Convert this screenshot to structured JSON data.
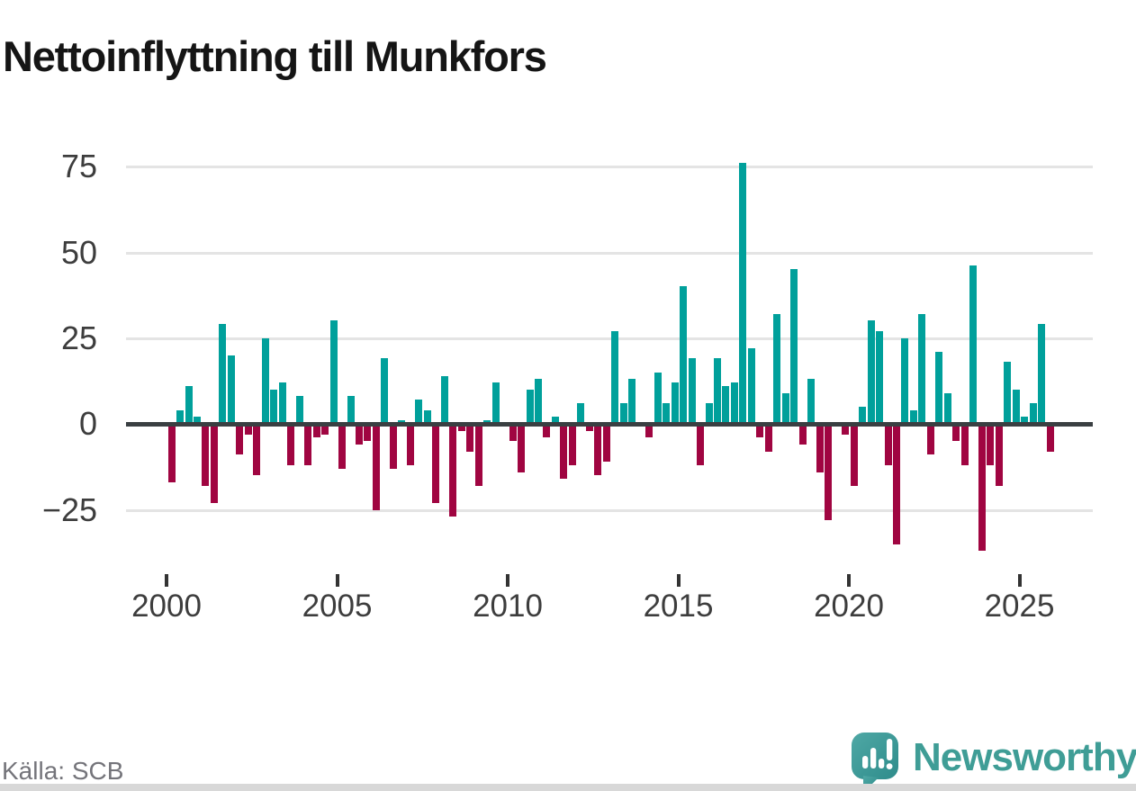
{
  "title": "Nettoinflyttning till Munkfors",
  "source_label": "Källa: SCB",
  "branding": {
    "logo_text": "Newsworthy"
  },
  "colors": {
    "positive_bar": "#00a09b",
    "negative_bar": "#a00541",
    "gridline": "#e4e4e4",
    "zero_axis": "#3a3f42",
    "axis_text": "#3d3d3d",
    "title_text": "#151515",
    "source_text": "#74747a",
    "brand_teal": "#3f9d96"
  },
  "chart_data": {
    "type": "bar",
    "title": "Nettoinflyttning till Munkfors",
    "x_unit": "quarter",
    "x_start_year": 2000,
    "periods_per_year": 4,
    "x_tick_labels": [
      "2000",
      "2005",
      "2010",
      "2015",
      "2020",
      "2025"
    ],
    "y_tick_labels": [
      "75",
      "50",
      "25",
      "0",
      "−25"
    ],
    "y_ticks": [
      75,
      50,
      25,
      0,
      -25
    ],
    "ylim": [
      -40,
      80
    ],
    "grid": true,
    "legend": "none",
    "values": [
      -17,
      4,
      11,
      2,
      -18,
      -23,
      29,
      20,
      -9,
      -3,
      -15,
      25,
      10,
      12,
      -12,
      8,
      -12,
      -4,
      -3,
      30,
      -13,
      8,
      -6,
      -5,
      -25,
      19,
      -13,
      1,
      -12,
      7,
      4,
      -23,
      14,
      -27,
      -2,
      -8,
      -18,
      1,
      12,
      0,
      -5,
      -14,
      10,
      13,
      -4,
      2,
      -16,
      -12,
      6,
      -2,
      -15,
      -11,
      27,
      6,
      13,
      0,
      -4,
      15,
      6,
      12,
      40,
      19,
      -12,
      6,
      19,
      11,
      12,
      76,
      22,
      -4,
      -8,
      32,
      9,
      45,
      -6,
      13,
      -14,
      -28,
      0,
      -3,
      -18,
      5,
      30,
      27,
      -12,
      -35,
      25,
      4,
      32,
      -9,
      21,
      9,
      -5,
      -12,
      46,
      -37,
      -12,
      -18,
      18,
      10,
      2,
      6,
      29,
      -8
    ]
  }
}
